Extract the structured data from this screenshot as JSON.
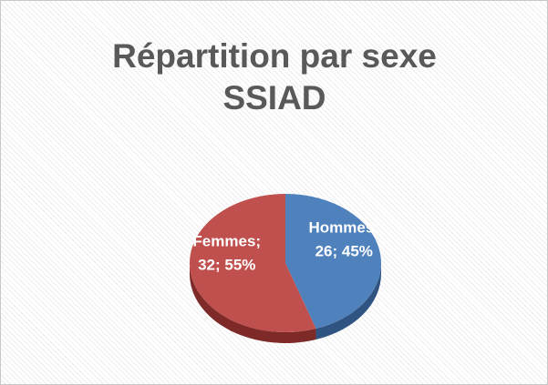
{
  "chart_data": {
    "type": "pie",
    "title": "Répartition par sexe SSIAD",
    "categories": [
      "Hommes",
      "Femmes"
    ],
    "values": [
      26,
      32
    ],
    "value_labels": [
      "Hommes; 26; 45%",
      "Femmes; 32; 55%"
    ],
    "colors": [
      "#4f81bd",
      "#c0504d"
    ],
    "side_colors": [
      "#2f5482",
      "#7d2a28"
    ]
  }
}
